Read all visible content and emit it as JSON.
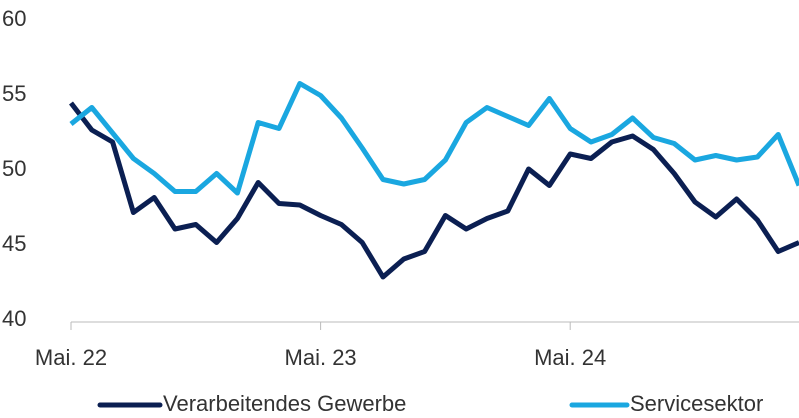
{
  "chart_data": {
    "type": "line",
    "categories": [
      "Mai. 22",
      null,
      null,
      null,
      null,
      null,
      null,
      null,
      null,
      null,
      null,
      null,
      "Mai. 23",
      null,
      null,
      null,
      null,
      null,
      null,
      null,
      null,
      null,
      null,
      null,
      "Mai. 24",
      null,
      null,
      null,
      null,
      null,
      null,
      null,
      null,
      null,
      null,
      null
    ],
    "series": [
      {
        "name": "Verarbeitendes Gewerbe",
        "color": "#0b1f52",
        "values": [
          54.6,
          52.8,
          52.0,
          47.3,
          48.3,
          46.2,
          46.5,
          45.3,
          46.9,
          49.3,
          47.9,
          47.8,
          47.1,
          46.5,
          45.3,
          43.0,
          44.2,
          44.7,
          47.1,
          46.2,
          46.9,
          47.4,
          50.2,
          49.1,
          51.2,
          50.9,
          52.0,
          52.4,
          51.5,
          49.9,
          48.0,
          47.0,
          48.2,
          46.8,
          44.7,
          45.3
        ]
      },
      {
        "name": "Servicesektor",
        "color": "#1aa7e0",
        "values": [
          53.2,
          54.3,
          52.6,
          50.9,
          49.9,
          48.7,
          48.7,
          49.9,
          48.6,
          53.3,
          52.9,
          55.9,
          55.1,
          53.6,
          51.6,
          49.5,
          49.2,
          49.5,
          50.8,
          53.3,
          54.3,
          53.7,
          53.1,
          54.9,
          52.9,
          52.0,
          52.5,
          53.6,
          52.3,
          51.9,
          50.8,
          51.1,
          50.8,
          51.0,
          52.5,
          49.1
        ]
      }
    ],
    "ylim": [
      40,
      60
    ],
    "yticks": [
      40,
      45,
      50,
      55,
      60
    ],
    "grid": false,
    "legend": "bottom"
  }
}
